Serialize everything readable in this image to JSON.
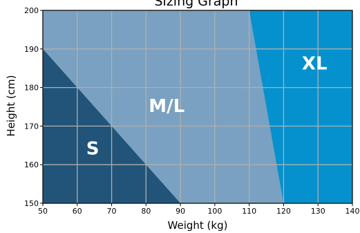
{
  "chart_data": {
    "type": "area",
    "title": "Sizing Graph",
    "xlabel": "Weight (kg)",
    "ylabel": "Height (cm)",
    "xlim": [
      50,
      140
    ],
    "ylim": [
      150,
      200
    ],
    "xticks": [
      "50",
      "60",
      "70",
      "80",
      "90",
      "100",
      "110",
      "120",
      "130",
      "140"
    ],
    "yticks": [
      "150",
      "160",
      "170",
      "180",
      "190",
      "200"
    ],
    "grid": true,
    "legend": "none",
    "regions": [
      {
        "name": "M/L",
        "color": "#7aa1c1",
        "polygon": [
          [
            50,
            150
          ],
          [
            140,
            150
          ],
          [
            140,
            200
          ],
          [
            50,
            200
          ]
        ],
        "label": "M/L",
        "label_at": [
          86,
          175
        ],
        "label_size": 26
      },
      {
        "name": "S",
        "color": "#215478",
        "polygon": [
          [
            50,
            150
          ],
          [
            90,
            150
          ],
          [
            50,
            190
          ]
        ],
        "label": "S",
        "label_at": [
          64.5,
          164
        ],
        "label_size": 26
      },
      {
        "name": "XL",
        "color": "#0591cd",
        "polygon": [
          [
            110,
            200
          ],
          [
            140,
            200
          ],
          [
            140,
            150
          ],
          [
            120,
            150
          ]
        ],
        "label": "XL",
        "label_at": [
          129,
          186
        ],
        "label_size": 26
      }
    ]
  }
}
